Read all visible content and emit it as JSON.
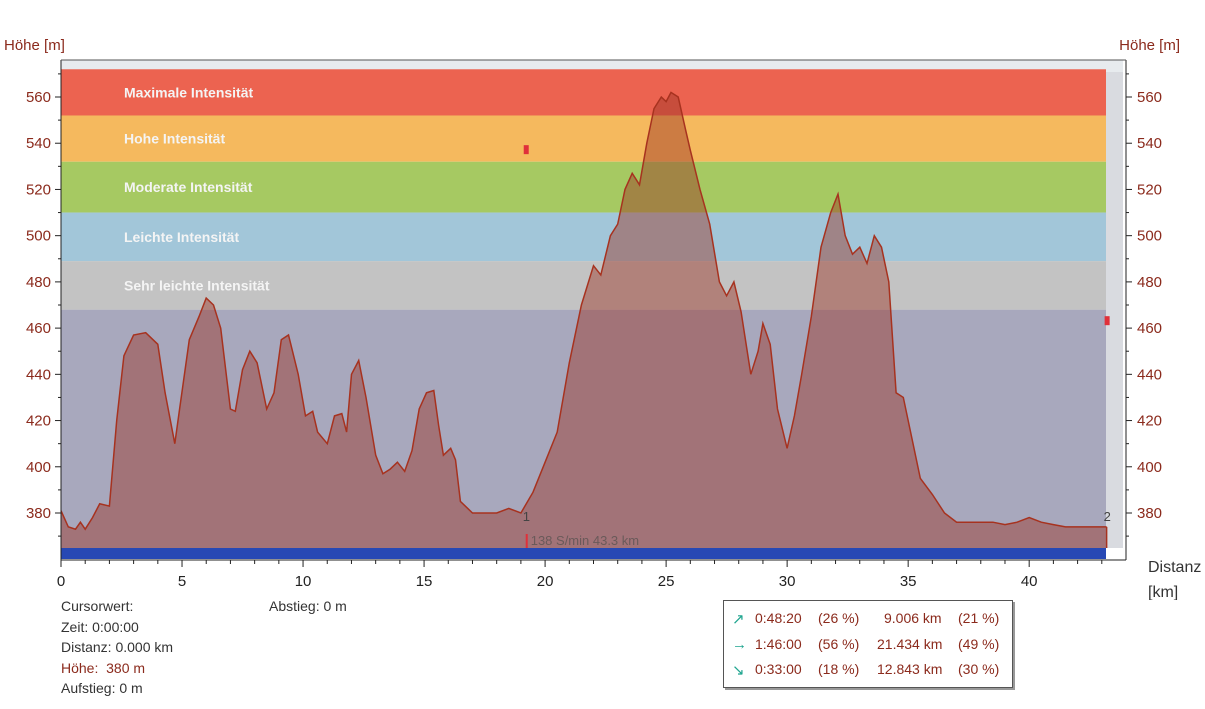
{
  "chart_data": {
    "type": "area",
    "ylabel_left": "Höhe [m]",
    "ylabel_right": "Höhe [m]",
    "xlabel": "Distanz [km]",
    "xlabel_line1": "Distanz",
    "xlabel_line2": "[km]",
    "xlim": [
      0,
      44
    ],
    "ylim": [
      362,
      572
    ],
    "x_ticks": [
      0,
      5,
      10,
      15,
      20,
      25,
      30,
      35,
      40
    ],
    "y_ticks": [
      380,
      400,
      420,
      440,
      460,
      480,
      500,
      520,
      540,
      560
    ],
    "intensity_zones": [
      {
        "label": "Maximale Intensität",
        "from": 552,
        "to": 572,
        "color": "#ec6350"
      },
      {
        "label": "Hohe Intensität",
        "from": 532,
        "to": 552,
        "color": "#f5b95e"
      },
      {
        "label": "Moderate Intensität",
        "from": 510,
        "to": 532,
        "color": "#a6c962"
      },
      {
        "label": "Leichte Intensität",
        "from": 489,
        "to": 510,
        "color": "#a2c6d9"
      },
      {
        "label": "Sehr leichte Intensität",
        "from": 468,
        "to": 489,
        "color": "#c3c3c3"
      }
    ],
    "base_zone_color": "#a8a8bd",
    "profile_color": "#a7321f",
    "series": [
      {
        "x": [
          0,
          0.3,
          0.6,
          0.8,
          1.0,
          1.3,
          1.6,
          2.0,
          2.3,
          2.6,
          3.0,
          3.5,
          4.0,
          4.3,
          4.7,
          4.9,
          5.3,
          5.7,
          6.0,
          6.3,
          6.6,
          7.0,
          7.2,
          7.5,
          7.8,
          8.1,
          8.5,
          8.8,
          9.1,
          9.4,
          9.8,
          10.1,
          10.4,
          10.6,
          11.0,
          11.3,
          11.6,
          11.8,
          12.0,
          12.3,
          12.6,
          13.0,
          13.3,
          13.6,
          13.9,
          14.2,
          14.5,
          14.8,
          15.1,
          15.4,
          15.6,
          15.8,
          16.1,
          16.3,
          16.5,
          17.0,
          17.5,
          18.0,
          18.5,
          19.0,
          19.5,
          20.0,
          20.5,
          21.0,
          21.5,
          22.0,
          22.3,
          22.7,
          23.0,
          23.3,
          23.6,
          23.9,
          24.2,
          24.5,
          24.8,
          25.0,
          25.2,
          25.5,
          25.8,
          26.0,
          26.4,
          26.8,
          27.2,
          27.5,
          27.8,
          28.1,
          28.5,
          28.8,
          29.0,
          29.3,
          29.6,
          30.0,
          30.3,
          30.6,
          31.0,
          31.4,
          31.8,
          32.1,
          32.4,
          32.7,
          33.0,
          33.3,
          33.6,
          33.9,
          34.2,
          34.5,
          34.8,
          35.1,
          35.5,
          36.0,
          36.5,
          37.0,
          37.5,
          38.0,
          38.5,
          39.0,
          39.5,
          40.0,
          40.5,
          41.0,
          41.5,
          42.0,
          42.5,
          43.0,
          43.2
        ],
        "y": [
          381,
          374,
          373,
          376,
          373,
          378,
          384,
          383,
          420,
          448,
          457,
          458,
          453,
          432,
          410,
          425,
          455,
          465,
          473,
          470,
          460,
          425,
          424,
          442,
          450,
          445,
          425,
          432,
          455,
          457,
          440,
          422,
          424,
          415,
          410,
          422,
          423,
          415,
          440,
          446,
          430,
          405,
          397,
          399,
          402,
          398,
          407,
          425,
          432,
          433,
          418,
          405,
          408,
          403,
          385,
          380,
          380,
          380,
          382,
          380,
          389,
          402,
          415,
          445,
          470,
          487,
          483,
          500,
          505,
          520,
          527,
          522,
          540,
          555,
          560,
          558,
          562,
          560,
          546,
          537,
          520,
          505,
          480,
          474,
          480,
          467,
          440,
          450,
          462,
          453,
          425,
          408,
          422,
          440,
          465,
          495,
          510,
          518,
          500,
          492,
          495,
          488,
          500,
          495,
          480,
          432,
          430,
          415,
          395,
          388,
          380,
          376,
          376,
          376,
          376,
          375,
          376,
          378,
          376,
          375,
          374,
          374,
          374,
          374,
          374
        ]
      }
    ],
    "markers": [
      {
        "label": "1",
        "x": 19.2
      },
      {
        "label": "2",
        "x": 43.2
      }
    ],
    "red_flags": [
      {
        "x": 19.2,
        "y": 537
      },
      {
        "x": 43.2,
        "y": 463
      }
    ],
    "cursor_readout": "138 S/min 43.3 km"
  },
  "cursor_panel": {
    "title": "Cursorwert:",
    "zeit": "Zeit: 0:00:00",
    "distanz": "Distanz: 0.000 km",
    "hoehe": "Höhe:  380 m",
    "aufstieg": "Aufstieg: 0 m",
    "abstieg": "Abstieg: 0 m"
  },
  "summary": [
    {
      "icon": "arrow-up-right-icon",
      "glyph": "↗",
      "time": "0:48:20",
      "time_pct": "(26 %)",
      "dist": "9.006 km",
      "dist_pct": "(21 %)"
    },
    {
      "icon": "arrow-right-icon",
      "glyph": "→",
      "time": "1:46:00",
      "time_pct": "(56 %)",
      "dist": "21.434 km",
      "dist_pct": "(49 %)"
    },
    {
      "icon": "arrow-down-right-icon",
      "glyph": "↘",
      "time": "0:33:00",
      "time_pct": "(18 %)",
      "dist": "12.843 km",
      "dist_pct": "(30 %)"
    }
  ]
}
